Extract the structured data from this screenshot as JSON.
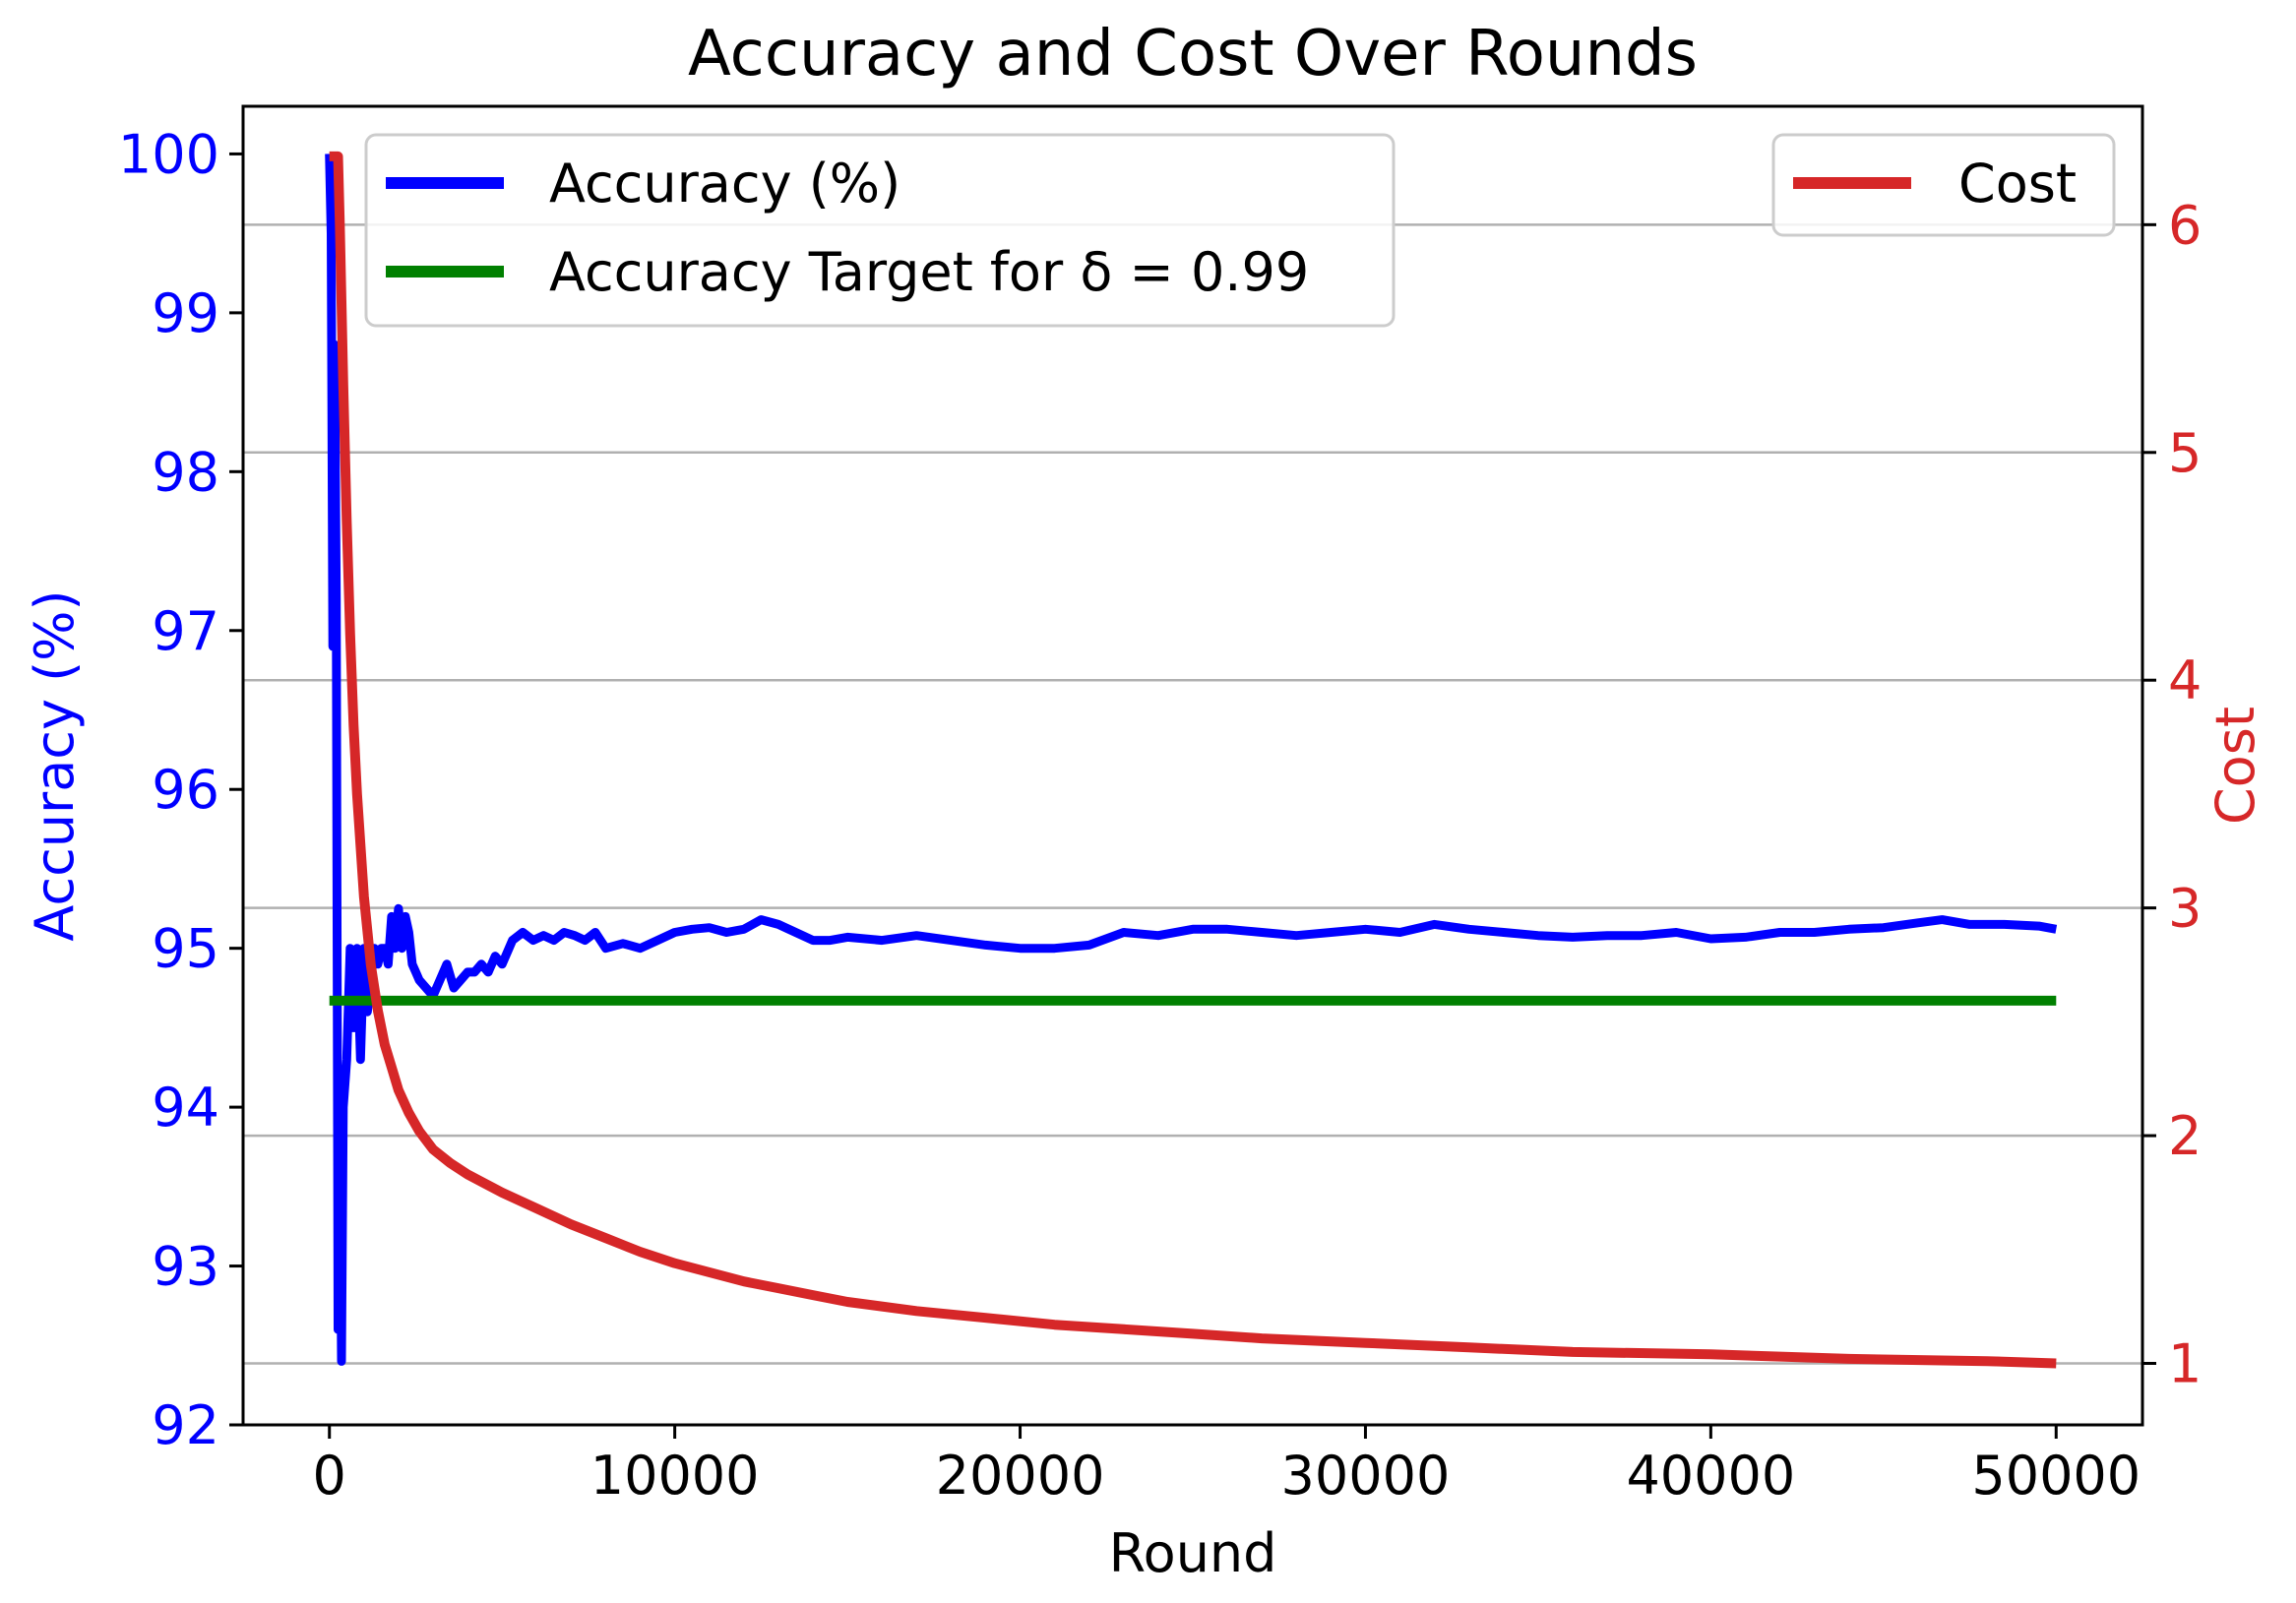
{
  "chart_data": {
    "type": "line",
    "title": "Accuracy and Cost Over Rounds",
    "xlabel": "Round",
    "ylabel_left": "Accuracy (%)",
    "ylabel_right": "Cost",
    "xlim": [
      -2500,
      52500
    ],
    "ylim_left": [
      92.0,
      100.3
    ],
    "ylim_right": [
      0.73,
      6.52
    ],
    "x_ticks": [
      0,
      10000,
      20000,
      30000,
      40000,
      50000
    ],
    "y_left_ticks": [
      92,
      93,
      94,
      95,
      96,
      97,
      98,
      99,
      100
    ],
    "y_right_ticks": [
      1,
      2,
      3,
      4,
      5,
      6
    ],
    "grid": "horizontal lines at right-axis ticks",
    "colors": {
      "accuracy": "#0000ff",
      "target": "#008000",
      "cost": "#d62728",
      "left_axis": "#0000ff",
      "right_axis": "#d62728",
      "grid": "#b0b0b0"
    },
    "legends": [
      {
        "placement": "upper left",
        "entries": [
          "Accuracy (%)",
          "Accuracy Target for δ = 0.99"
        ]
      },
      {
        "placement": "upper right",
        "entries": [
          "Cost"
        ]
      }
    ],
    "series": [
      {
        "name": "Accuracy (%)",
        "axis": "left",
        "x": [
          0,
          50,
          100,
          150,
          200,
          250,
          300,
          350,
          400,
          500,
          600,
          700,
          800,
          900,
          1000,
          1100,
          1200,
          1300,
          1400,
          1500,
          1600,
          1700,
          1800,
          1900,
          2000,
          2100,
          2200,
          2300,
          2400,
          2500,
          2600,
          2800,
          3000,
          3200,
          3400,
          3600,
          3800,
          4000,
          4200,
          4400,
          4600,
          4800,
          5000,
          5300,
          5600,
          5900,
          6200,
          6500,
          6800,
          7100,
          7400,
          7700,
          8000,
          8500,
          9000,
          9500,
          10000,
          10500,
          11000,
          11500,
          12000,
          12500,
          13000,
          13500,
          14000,
          14500,
          15000,
          16000,
          17000,
          18000,
          19000,
          20000,
          21000,
          22000,
          23000,
          24000,
          25000,
          26000,
          27000,
          28000,
          29000,
          30000,
          31000,
          32000,
          33000,
          34000,
          35000,
          36000,
          37000,
          38000,
          39000,
          40000,
          41000,
          42000,
          43000,
          44000,
          45000,
          46000,
          46700,
          47500,
          48500,
          49500,
          50000
        ],
        "y": [
          100.0,
          99.5,
          96.9,
          98.8,
          97.2,
          92.6,
          93.8,
          92.4,
          94.0,
          94.3,
          95.0,
          94.5,
          95.0,
          94.3,
          95.0,
          94.6,
          94.8,
          95.0,
          94.9,
          95.0,
          95.0,
          94.9,
          95.2,
          95.0,
          95.25,
          95.0,
          95.2,
          95.1,
          94.9,
          94.85,
          94.8,
          94.75,
          94.7,
          94.8,
          94.9,
          94.75,
          94.8,
          94.85,
          94.85,
          94.9,
          94.85,
          94.95,
          94.9,
          95.05,
          95.1,
          95.05,
          95.08,
          95.05,
          95.1,
          95.08,
          95.05,
          95.1,
          95.0,
          95.03,
          95.0,
          95.05,
          95.1,
          95.12,
          95.13,
          95.1,
          95.12,
          95.18,
          95.15,
          95.1,
          95.05,
          95.05,
          95.07,
          95.05,
          95.08,
          95.05,
          95.02,
          95.0,
          95.0,
          95.02,
          95.1,
          95.08,
          95.12,
          95.12,
          95.1,
          95.08,
          95.1,
          95.12,
          95.1,
          95.15,
          95.12,
          95.1,
          95.08,
          95.07,
          95.08,
          95.08,
          95.1,
          95.06,
          95.07,
          95.1,
          95.1,
          95.12,
          95.13,
          95.16,
          95.18,
          95.15,
          95.15,
          95.14,
          95.12
        ]
      },
      {
        "name": "Accuracy Target for δ = 0.99",
        "axis": "left",
        "x": [
          0,
          50000
        ],
        "y": [
          94.67,
          94.67
        ]
      },
      {
        "name": "Cost",
        "axis": "right",
        "x": [
          0,
          200,
          250,
          300,
          400,
          500,
          600,
          700,
          800,
          1000,
          1200,
          1400,
          1600,
          1800,
          2000,
          2300,
          2600,
          3000,
          3500,
          4000,
          4500,
          5000,
          6000,
          7000,
          8000,
          9000,
          10000,
          11000,
          12000,
          13000,
          14000,
          15000,
          17000,
          19000,
          21000,
          23000,
          25000,
          27000,
          30000,
          33000,
          36000,
          40000,
          44000,
          48000,
          50000
        ],
        "y": [
          6.3,
          6.3,
          6.3,
          6.0,
          5.3,
          4.7,
          4.2,
          3.8,
          3.5,
          3.05,
          2.75,
          2.55,
          2.4,
          2.3,
          2.2,
          2.1,
          2.02,
          1.94,
          1.88,
          1.83,
          1.79,
          1.75,
          1.68,
          1.61,
          1.55,
          1.49,
          1.44,
          1.4,
          1.36,
          1.33,
          1.3,
          1.27,
          1.23,
          1.2,
          1.17,
          1.15,
          1.13,
          1.11,
          1.09,
          1.07,
          1.05,
          1.04,
          1.02,
          1.01,
          1.0
        ]
      }
    ]
  }
}
